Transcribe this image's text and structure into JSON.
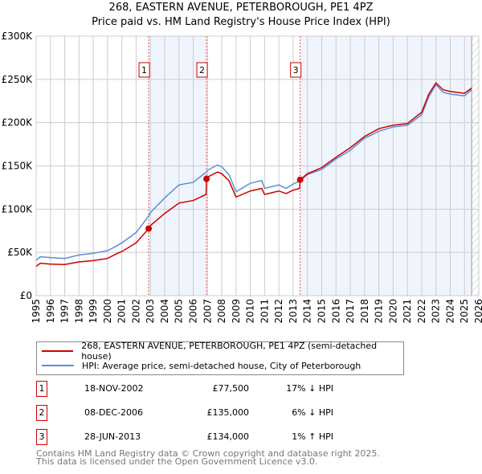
{
  "title_line1": "268, EASTERN AVENUE, PETERBOROUGH, PE1 4PZ",
  "title_line2": "Price paid vs. HM Land Registry's House Price Index (HPI)",
  "chart_data": {
    "type": "line",
    "xlim": [
      1995,
      2026
    ],
    "ylim": [
      0,
      300000
    ],
    "x_ticks": [
      1995,
      1996,
      1997,
      1998,
      1999,
      2000,
      2001,
      2002,
      2003,
      2004,
      2005,
      2006,
      2007,
      2008,
      2009,
      2010,
      2011,
      2012,
      2013,
      2014,
      2015,
      2016,
      2017,
      2018,
      2019,
      2020,
      2021,
      2022,
      2023,
      2024,
      2025,
      2026
    ],
    "y_ticks": [
      {
        "v": 0,
        "label": "£0"
      },
      {
        "v": 50000,
        "label": "£50K"
      },
      {
        "v": 100000,
        "label": "£100K"
      },
      {
        "v": 150000,
        "label": "£150K"
      },
      {
        "v": 200000,
        "label": "£200K"
      },
      {
        "v": 250000,
        "label": "£250K"
      },
      {
        "v": 300000,
        "label": "£300K"
      }
    ],
    "grid": true,
    "series": [
      {
        "name": "268, EASTERN AVENUE, PETERBOROUGH, PE1 4PZ (semi-detached house)",
        "color": "#cc0000",
        "x": [
          1995,
          1995.3,
          1996,
          1997,
          1998,
          1999,
          2000,
          2000.7,
          2001,
          2002,
          2002.88,
          2003,
          2004,
          2005,
          2006,
          2006.9,
          2006.93,
          2007,
          2007.7,
          2008,
          2008.5,
          2009,
          2010,
          2010.8,
          2011,
          2012,
          2012.5,
          2013,
          2013.45,
          2013.49,
          2014,
          2015,
          2016,
          2017,
          2018,
          2019,
          2020,
          2021,
          2022,
          2022.5,
          2023,
          2023.5,
          2024,
          2025,
          2025.5
        ],
        "y": [
          34000,
          37500,
          36500,
          36000,
          39000,
          40500,
          43000,
          49000,
          51000,
          61000,
          77500,
          81000,
          95000,
          107000,
          110000,
          117000,
          135000,
          137000,
          143000,
          141000,
          133000,
          114000,
          121000,
          124000,
          117000,
          121000,
          118000,
          122000,
          124000,
          134000,
          141000,
          148000,
          160000,
          171000,
          184000,
          193000,
          197000,
          199000,
          212000,
          233000,
          246000,
          238000,
          236000,
          234000,
          240000
        ]
      },
      {
        "name": "HPI: Average price, semi-detached house, City of Peterborough",
        "color": "#5b8fd4",
        "x": [
          1995,
          1995.3,
          1996,
          1997,
          1998,
          1999,
          2000,
          2000.7,
          2001,
          2002,
          2002.88,
          2003,
          2004,
          2005,
          2006,
          2006.93,
          2007,
          2007.7,
          2008,
          2008.5,
          2009,
          2010,
          2010.8,
          2011,
          2012,
          2012.5,
          2013,
          2013.49,
          2014,
          2015,
          2016,
          2017,
          2018,
          2019,
          2020,
          2021,
          2022,
          2022.5,
          2023,
          2023.5,
          2024,
          2025,
          2025.5
        ],
        "y": [
          41000,
          45000,
          44000,
          43000,
          47000,
          49000,
          52000,
          58000,
          61000,
          73000,
          92000,
          96000,
          113000,
          128000,
          131000,
          143000,
          145000,
          151000,
          149000,
          140000,
          120000,
          130000,
          133000,
          124000,
          128000,
          124000,
          129000,
          133000,
          140000,
          146000,
          158000,
          168000,
          182000,
          190000,
          195000,
          197000,
          209000,
          230000,
          244000,
          235000,
          233000,
          231000,
          238000
        ]
      }
    ],
    "sales": [
      {
        "label": "1",
        "x": 2002.88,
        "y": 77500,
        "date": "18-NOV-2002",
        "price": "£77,500",
        "hpi": "17% ↓ HPI"
      },
      {
        "label": "2",
        "x": 2006.93,
        "y": 135000,
        "date": "08-DEC-2006",
        "price": "£135,000",
        "hpi": "6% ↓ HPI"
      },
      {
        "label": "3",
        "x": 2013.49,
        "y": 134000,
        "date": "28-JUN-2013",
        "price": "£134,000",
        "hpi": "1% ↑ HPI"
      }
    ],
    "hatched_from": 2025.5,
    "legend_position": "below"
  },
  "legend": {
    "red": "268, EASTERN AVENUE, PETERBOROUGH, PE1 4PZ (semi-detached house)",
    "blue": "HPI: Average price, semi-detached house, City of Peterborough"
  },
  "footer1": "Contains HM Land Registry data © Crown copyright and database right 2025.",
  "footer2": "This data is licensed under the Open Government Licence v3.0."
}
